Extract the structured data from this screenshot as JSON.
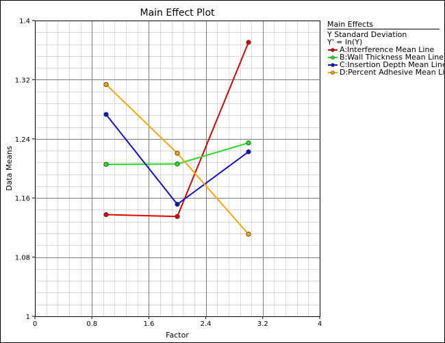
{
  "chart_data": {
    "type": "line",
    "title": "Main Effect Plot",
    "xlabel": "Factor",
    "ylabel": "Data Means",
    "xlim": [
      0,
      4
    ],
    "ylim": [
      1,
      1.4
    ],
    "x_ticks": [
      "0",
      "0.8",
      "1.6",
      "2.4",
      "3.2",
      "4"
    ],
    "y_ticks": [
      "1",
      "1.08",
      "1.16",
      "1.24",
      "1.32",
      "1.4"
    ],
    "grid": true,
    "legend": {
      "title": "Main Effects",
      "subtitle_1": "Y Standard Deviation",
      "subtitle_2": "Y' = ln(Y)",
      "placement": "right"
    },
    "series": [
      {
        "name": "A:Interference Mean Line",
        "color": "#e00000",
        "x": [
          1,
          2,
          3
        ],
        "y": [
          1.1375,
          1.135,
          1.3705
        ]
      },
      {
        "name": "B:Wall Thickness Mean Line",
        "color": "#22e022",
        "x": [
          1,
          2,
          3
        ],
        "y": [
          1.2055,
          1.206,
          1.2345
        ]
      },
      {
        "name": "C:Insertion Depth Mean Line",
        "color": "#1010c8",
        "x": [
          1,
          2,
          3
        ],
        "y": [
          1.273,
          1.1515,
          1.2225
        ]
      },
      {
        "name": "D:Percent Adhesive Mean Line",
        "color": "#ffa500",
        "x": [
          1,
          2,
          3
        ],
        "y": [
          1.3135,
          1.2205,
          1.111
        ]
      }
    ]
  }
}
